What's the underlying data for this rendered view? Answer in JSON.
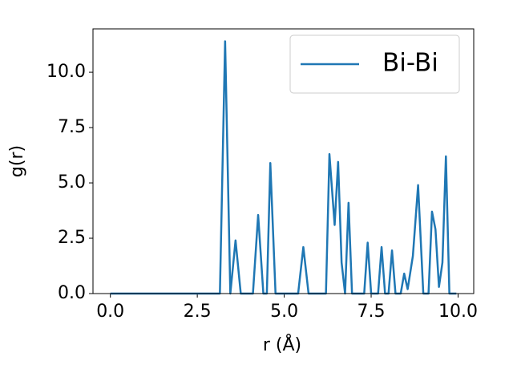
{
  "chart_data": {
    "type": "line",
    "x_label": "r (Å)",
    "y_label": "g(r)",
    "x": [
      0,
      3.15,
      3.3,
      3.45,
      3.6,
      3.75,
      4.1,
      4.25,
      4.4,
      4.5,
      4.6,
      4.75,
      5.4,
      5.55,
      5.7,
      6.2,
      6.3,
      6.45,
      6.55,
      6.65,
      6.75,
      6.85,
      6.95,
      7.3,
      7.4,
      7.5,
      7.7,
      7.8,
      7.9,
      8.0,
      8.1,
      8.2,
      8.35,
      8.45,
      8.55,
      8.7,
      8.85,
      9.0,
      9.15,
      9.25,
      9.35,
      9.45,
      9.55,
      9.65,
      9.75,
      9.95
    ],
    "series": [
      {
        "name": "Bi-Bi",
        "color": "#1f77b4",
        "values": [
          0,
          0,
          11.4,
          0,
          2.4,
          0,
          0,
          3.55,
          0,
          0,
          5.9,
          0,
          0,
          2.1,
          0,
          0,
          6.3,
          3.1,
          5.95,
          1.4,
          0,
          4.1,
          0,
          0,
          2.3,
          0,
          0,
          2.1,
          0,
          0,
          1.95,
          0,
          0,
          0.9,
          0.2,
          1.7,
          4.9,
          0,
          0,
          3.7,
          2.9,
          0.3,
          1.4,
          6.2,
          0,
          0
        ]
      }
    ],
    "xlim": [
      -0.5,
      10.45
    ],
    "ylim": [
      0,
      11.96
    ],
    "xticks": [
      {
        "value": 0,
        "label": "0.0"
      },
      {
        "value": 2.5,
        "label": "2.5"
      },
      {
        "value": 5,
        "label": "5.0"
      },
      {
        "value": 7.5,
        "label": "7.5"
      },
      {
        "value": 10,
        "label": "10.0"
      }
    ],
    "yticks": [
      {
        "value": 0,
        "label": "0.0"
      },
      {
        "value": 2.5,
        "label": "2.5"
      },
      {
        "value": 5,
        "label": "5.0"
      },
      {
        "value": 7.5,
        "label": "7.5"
      },
      {
        "value": 10,
        "label": "10.0"
      }
    ],
    "grid": false,
    "legend": "upper right"
  }
}
